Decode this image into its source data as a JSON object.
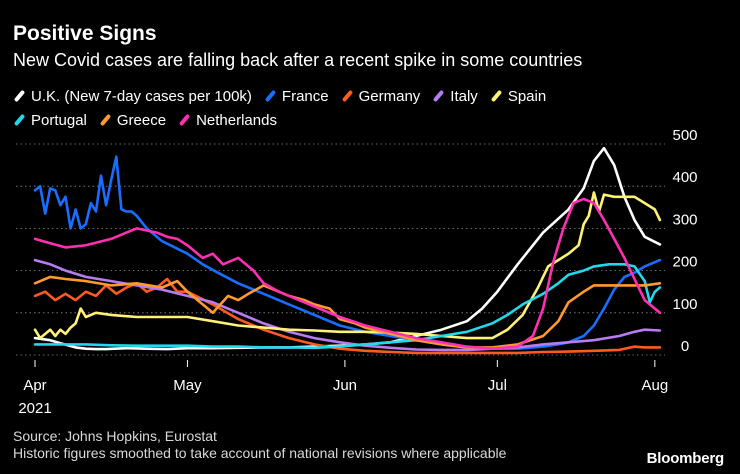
{
  "title": "Positive Signs",
  "subtitle": "New Covid cases are falling back after a recent spike in some countries",
  "footer": {
    "source": "Source: Johns Hopkins, Eurostat",
    "note": "Historic figures smoothed to take account of national revisions where applicable",
    "brand": "Bloomberg"
  },
  "chart_data": {
    "type": "line",
    "title": "Positive Signs",
    "subtitle": "New Covid cases are falling back after a recent spike in some countries",
    "ylabel": "New 7-day cases per 100k",
    "ylim": [
      0,
      500
    ],
    "yticks": [
      0,
      100,
      200,
      300,
      400,
      500
    ],
    "y_axis_position": "right",
    "grid": true,
    "legend_placement": "top",
    "xlim": [
      0,
      124
    ],
    "xticks": [
      {
        "day": 0,
        "label": "Apr",
        "sublabel": "2021"
      },
      {
        "day": 30,
        "label": "May"
      },
      {
        "day": 61,
        "label": "Jun"
      },
      {
        "day": 91,
        "label": "Jul"
      },
      {
        "day": 122,
        "label": "Aug"
      }
    ],
    "x_unit": "days since 2021-04-01",
    "series": [
      {
        "name": "U.K. (New 7-day cases per 100k)",
        "legend": "U.K. (New 7-day cases per 100k)",
        "color": "#ffffff",
        "x": [
          0,
          3,
          5,
          8,
          10,
          12,
          14,
          18,
          22,
          26,
          30,
          35,
          40,
          45,
          50,
          55,
          60,
          65,
          70,
          75,
          80,
          85,
          88,
          91,
          95,
          100,
          105,
          108,
          110,
          112,
          114,
          116,
          118,
          120,
          123
        ],
        "y": [
          40,
          35,
          28,
          18,
          15,
          14,
          14,
          16,
          15,
          14,
          16,
          16,
          17,
          18,
          18,
          20,
          22,
          25,
          30,
          45,
          60,
          80,
          110,
          150,
          215,
          290,
          345,
          395,
          460,
          490,
          450,
          375,
          320,
          280,
          262
        ]
      },
      {
        "name": "France",
        "legend": "France",
        "color": "#1a6eff",
        "x": [
          0,
          1,
          2,
          3,
          4,
          5,
          6,
          7,
          8,
          9,
          10,
          11,
          12,
          13,
          14,
          15,
          16,
          17,
          18,
          19,
          20,
          22,
          25,
          30,
          33,
          36,
          40,
          45,
          50,
          55,
          60,
          65,
          70,
          75,
          80,
          85,
          90,
          95,
          100,
          103,
          105,
          108,
          110,
          112,
          114,
          116,
          118,
          120,
          123
        ],
        "y": [
          390,
          400,
          335,
          395,
          390,
          355,
          375,
          300,
          345,
          300,
          310,
          360,
          340,
          425,
          355,
          415,
          470,
          345,
          340,
          340,
          330,
          300,
          270,
          240,
          215,
          195,
          170,
          145,
          120,
          95,
          70,
          55,
          45,
          35,
          25,
          18,
          15,
          15,
          20,
          25,
          30,
          45,
          70,
          110,
          155,
          185,
          195,
          210,
          225
        ]
      },
      {
        "name": "Germany",
        "legend": "Germany",
        "color": "#ff5a1f",
        "x": [
          0,
          2,
          4,
          6,
          8,
          10,
          12,
          14,
          16,
          18,
          20,
          22,
          24,
          26,
          28,
          30,
          35,
          40,
          45,
          50,
          55,
          60,
          65,
          70,
          75,
          80,
          85,
          90,
          95,
          100,
          105,
          110,
          115,
          118,
          120,
          123
        ],
        "y": [
          140,
          150,
          130,
          145,
          130,
          150,
          140,
          165,
          145,
          160,
          170,
          150,
          160,
          180,
          150,
          150,
          120,
          85,
          60,
          40,
          25,
          15,
          10,
          7,
          5,
          5,
          5,
          5,
          5,
          7,
          8,
          10,
          12,
          20,
          18,
          18
        ]
      },
      {
        "name": "Italy",
        "legend": "Italy",
        "color": "#b77cf0",
        "x": [
          0,
          3,
          6,
          10,
          15,
          20,
          25,
          30,
          35,
          40,
          45,
          50,
          55,
          60,
          65,
          70,
          75,
          80,
          85,
          90,
          95,
          100,
          105,
          110,
          115,
          118,
          120,
          123
        ],
        "y": [
          225,
          215,
          200,
          185,
          175,
          165,
          155,
          140,
          125,
          100,
          75,
          55,
          40,
          30,
          22,
          17,
          13,
          12,
          12,
          15,
          18,
          25,
          30,
          35,
          45,
          55,
          60,
          58
        ]
      },
      {
        "name": "Spain",
        "legend": "Spain",
        "color": "#fff176",
        "x": [
          0,
          1,
          2,
          3,
          4,
          5,
          6,
          7,
          8,
          9,
          10,
          12,
          15,
          20,
          25,
          30,
          35,
          40,
          45,
          50,
          55,
          60,
          65,
          70,
          75,
          80,
          85,
          90,
          93,
          96,
          99,
          101,
          103,
          105,
          107,
          108,
          109,
          110,
          111,
          112,
          114,
          116,
          118,
          120,
          122,
          123
        ],
        "y": [
          60,
          40,
          50,
          60,
          45,
          60,
          50,
          65,
          75,
          110,
          90,
          100,
          95,
          90,
          90,
          90,
          80,
          70,
          65,
          60,
          58,
          55,
          55,
          53,
          50,
          45,
          40,
          40,
          60,
          95,
          160,
          210,
          225,
          240,
          260,
          310,
          330,
          385,
          340,
          380,
          375,
          375,
          375,
          360,
          345,
          320
        ]
      },
      {
        "name": "Portugal",
        "legend": "Portugal",
        "color": "#21d9ea",
        "x": [
          0,
          5,
          10,
          15,
          20,
          25,
          30,
          35,
          40,
          45,
          50,
          55,
          60,
          65,
          70,
          75,
          80,
          85,
          90,
          93,
          96,
          100,
          103,
          105,
          108,
          110,
          113,
          116,
          118,
          120,
          121,
          122,
          123
        ],
        "y": [
          25,
          25,
          25,
          23,
          22,
          22,
          22,
          20,
          20,
          18,
          18,
          17,
          20,
          25,
          30,
          35,
          45,
          55,
          75,
          95,
          120,
          145,
          170,
          190,
          200,
          210,
          215,
          215,
          210,
          175,
          125,
          150,
          160
        ]
      },
      {
        "name": "Greece",
        "legend": "Greece",
        "color": "#ff9a2e",
        "x": [
          0,
          3,
          6,
          10,
          15,
          20,
          25,
          28,
          30,
          33,
          35,
          38,
          40,
          42,
          45,
          48,
          50,
          53,
          55,
          58,
          60,
          63,
          65,
          70,
          75,
          80,
          85,
          90,
          95,
          100,
          103,
          105,
          108,
          110,
          113,
          116,
          120,
          123
        ],
        "y": [
          170,
          185,
          180,
          175,
          165,
          170,
          160,
          175,
          150,
          120,
          100,
          140,
          130,
          145,
          165,
          150,
          140,
          130,
          120,
          110,
          85,
          75,
          65,
          50,
          35,
          25,
          18,
          18,
          25,
          45,
          80,
          125,
          150,
          165,
          165,
          165,
          165,
          170
        ]
      },
      {
        "name": "Netherlands",
        "legend": "Netherlands",
        "color": "#ff2fb2",
        "x": [
          0,
          3,
          6,
          10,
          15,
          18,
          20,
          22,
          24,
          26,
          28,
          30,
          33,
          35,
          37,
          40,
          43,
          45,
          48,
          50,
          55,
          60,
          65,
          70,
          75,
          80,
          85,
          90,
          95,
          98,
          100,
          102,
          104,
          106,
          108,
          110,
          112,
          114,
          116,
          118,
          120,
          123
        ],
        "y": [
          275,
          265,
          255,
          260,
          275,
          290,
          300,
          295,
          290,
          280,
          275,
          260,
          230,
          240,
          215,
          230,
          200,
          170,
          150,
          140,
          115,
          90,
          70,
          55,
          40,
          30,
          20,
          15,
          20,
          45,
          110,
          220,
          300,
          360,
          370,
          360,
          320,
          275,
          230,
          180,
          130,
          100
        ]
      }
    ]
  }
}
